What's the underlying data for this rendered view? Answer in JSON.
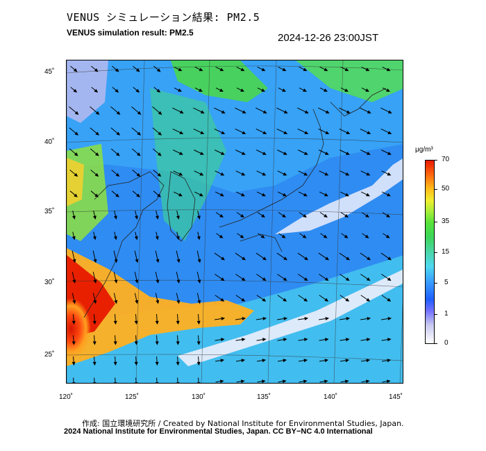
{
  "header": {
    "title_ja": "VENUS シミュレーション結果: PM2.5",
    "title_en": "VENUS simulation result: PM2.5",
    "timestamp": "2024-12-26 23:00JST"
  },
  "map": {
    "lat_labels": [
      "45˚",
      "40˚",
      "35˚",
      "30˚",
      "25˚"
    ],
    "lon_labels": [
      "120˚",
      "125˚",
      "130˚",
      "135˚",
      "140˚",
      "145˚"
    ],
    "lat_range": [
      23,
      46
    ],
    "lon_range": [
      120,
      145.5
    ],
    "variable": "PM2.5"
  },
  "colorbar": {
    "unit": "μg/m³",
    "ticks": [
      "70",
      "50",
      "35",
      "15",
      "5",
      "1",
      "0"
    ],
    "colors": [
      "#e81a00",
      "#ff6a10",
      "#ffb818",
      "#f0ef30",
      "#a6ee3a",
      "#3bd65a",
      "#4fd8f0",
      "#3aa0ff",
      "#1f5fff",
      "#7070ff",
      "#c8c8f0",
      "#ffffff"
    ]
  },
  "footer": {
    "credit_line1": "作成: 国立環境研究所 / Created by National Institute for Environmental Studies, Japan.",
    "credit_line2": "2024 National Institute for Environmental Studies, Japan. CC BY−NC 4.0 International"
  }
}
